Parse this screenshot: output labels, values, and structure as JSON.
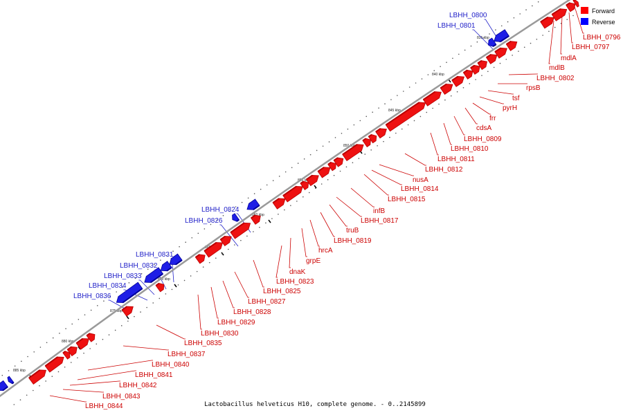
{
  "caption": "Lactobacillus helveticus H10, complete genome. - 0..2145899",
  "legend": {
    "items": [
      {
        "label": "Forward",
        "color": "#ff0000"
      },
      {
        "label": "Reverse",
        "color": "#0000ff"
      }
    ]
  },
  "colors": {
    "forward_fill": "#ee1111",
    "forward_dark": "#b80000",
    "forward_text": "#cc0000",
    "reverse_fill": "#1e1ee6",
    "reverse_dark": "#00009a",
    "reverse_text": "#2020c8",
    "backbone": "#9a9a9a"
  },
  "map": {
    "kbp_ticks": [
      "835 kbp",
      "840 kbp",
      "845 kbp",
      "850 kbp",
      "855 kbp",
      "860 kbp",
      "865 kbp",
      "870 kbp",
      "875 kbp",
      "880 kbp",
      "885 kbp"
    ],
    "forward_labels": [
      "LBHH_0796",
      "LBHH_0797",
      "mdlA",
      "mdlB",
      "LBHH_0802",
      "rpsB",
      "tsf",
      "pyrH",
      "frr",
      "cdsA",
      "LBHH_0809",
      "LBHH_0810",
      "LBHH_0811",
      "LBHH_0812",
      "nusA",
      "LBHH_0814",
      "LBHH_0815",
      "infB",
      "LBHH_0817",
      "truB",
      "LBHH_0819",
      "hrcA",
      "grpE",
      "dnaK",
      "LBHH_0823",
      "LBHH_0825",
      "LBHH_0827",
      "LBHH_0828",
      "LBHH_0829",
      "LBHH_0830",
      "LBHH_0835",
      "LBHH_0837",
      "LBHH_0840",
      "LBHH_0841",
      "LBHH_0842",
      "LBHH_0843",
      "LBHH_0844"
    ],
    "reverse_labels": [
      "LBHH_0800",
      "LBHH_0801",
      "LBHH_0824",
      "LBHH_0826",
      "LBHH_0831",
      "LBHH_0832",
      "LBHH_0833",
      "LBHH_0834",
      "LBHH_0836"
    ]
  }
}
